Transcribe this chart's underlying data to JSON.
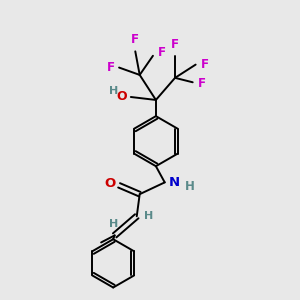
{
  "background_color": "#e8e8e8",
  "atom_colors": {
    "C": "#000000",
    "H": "#5a8a8a",
    "O": "#cc0000",
    "N": "#0000cc",
    "F": "#cc00cc"
  },
  "bond_color": "#000000",
  "figsize": [
    3.0,
    3.0
  ],
  "dpi": 100
}
